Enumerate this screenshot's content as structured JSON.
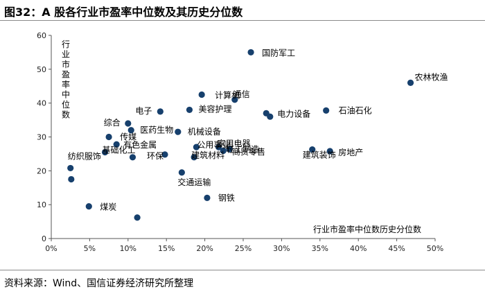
{
  "figure_title": "图32：A 股各行业市盈率中位数及其历史分位数",
  "source_note": "资料来源：Wind、国信证券经济研究所整理",
  "colors": {
    "marker": "#17406d",
    "axis": "#555555",
    "rule": "#8a8a8a"
  },
  "chart_data": {
    "type": "scatter",
    "title": "A 股各行业市盈率中位数及其历史分位数",
    "xlabel": "行业市盈率中位数历史分位数",
    "ylabel": "行业市盈率中位数",
    "xlim": [
      0,
      50
    ],
    "ylim": [
      0,
      60
    ],
    "x_unit": "%",
    "x_ticks": [
      "0%",
      "5%",
      "10%",
      "15%",
      "20%",
      "25%",
      "30%",
      "35%",
      "40%",
      "45%",
      "50%"
    ],
    "y_ticks": [
      "0",
      "10",
      "20",
      "30",
      "40",
      "50",
      "60"
    ],
    "grid": false,
    "points": [
      {
        "name": "国防军工",
        "x": 26.0,
        "y": 55.0
      },
      {
        "name": "农林牧渔",
        "x": 46.8,
        "y": 46.0
      },
      {
        "name": "计算机",
        "x": 19.6,
        "y": 42.5
      },
      {
        "name": "通信",
        "x": 23.9,
        "y": 41.0
      },
      {
        "name": "美容护理",
        "x": 18.0,
        "y": 38.0
      },
      {
        "name": "电子",
        "x": 14.2,
        "y": 37.5
      },
      {
        "name": "电力设备",
        "x": 28.0,
        "y": 37.0
      },
      {
        "name": "",
        "x": 28.5,
        "y": 36.0
      },
      {
        "name": "石油石化",
        "x": 35.8,
        "y": 37.8
      },
      {
        "name": "综合",
        "x": 10.0,
        "y": 34.0
      },
      {
        "name": "医药生物",
        "x": 10.4,
        "y": 32.0
      },
      {
        "name": "机械设备",
        "x": 16.5,
        "y": 31.5
      },
      {
        "name": "传媒",
        "x": 7.5,
        "y": 30.0
      },
      {
        "name": "有色金属",
        "x": 8.5,
        "y": 27.8
      },
      {
        "name": "基础化工",
        "x": 7.0,
        "y": 25.5
      },
      {
        "name": "",
        "x": 10.6,
        "y": 24.0
      },
      {
        "name": "环保",
        "x": 14.8,
        "y": 24.8
      },
      {
        "name": "建筑材料",
        "x": 18.6,
        "y": 24.0
      },
      {
        "name": "公用事业",
        "x": 18.9,
        "y": 27.0
      },
      {
        "name": "家用电器",
        "x": 21.8,
        "y": 27.0
      },
      {
        "name": "轻工制造",
        "x": 22.4,
        "y": 25.9
      },
      {
        "name": "商贸零售",
        "x": 23.2,
        "y": 26.4
      },
      {
        "name": "建筑装饰",
        "x": 34.0,
        "y": 26.3
      },
      {
        "name": "房地产",
        "x": 36.3,
        "y": 25.8
      },
      {
        "name": "纺织服饰",
        "x": 2.5,
        "y": 20.8
      },
      {
        "name": "",
        "x": 2.6,
        "y": 17.5
      },
      {
        "name": "交通运输",
        "x": 17.0,
        "y": 19.5
      },
      {
        "name": "钢铁",
        "x": 20.3,
        "y": 12.0
      },
      {
        "name": "煤炭",
        "x": 4.9,
        "y": 9.5
      },
      {
        "name": "",
        "x": 11.2,
        "y": 6.2
      }
    ]
  }
}
